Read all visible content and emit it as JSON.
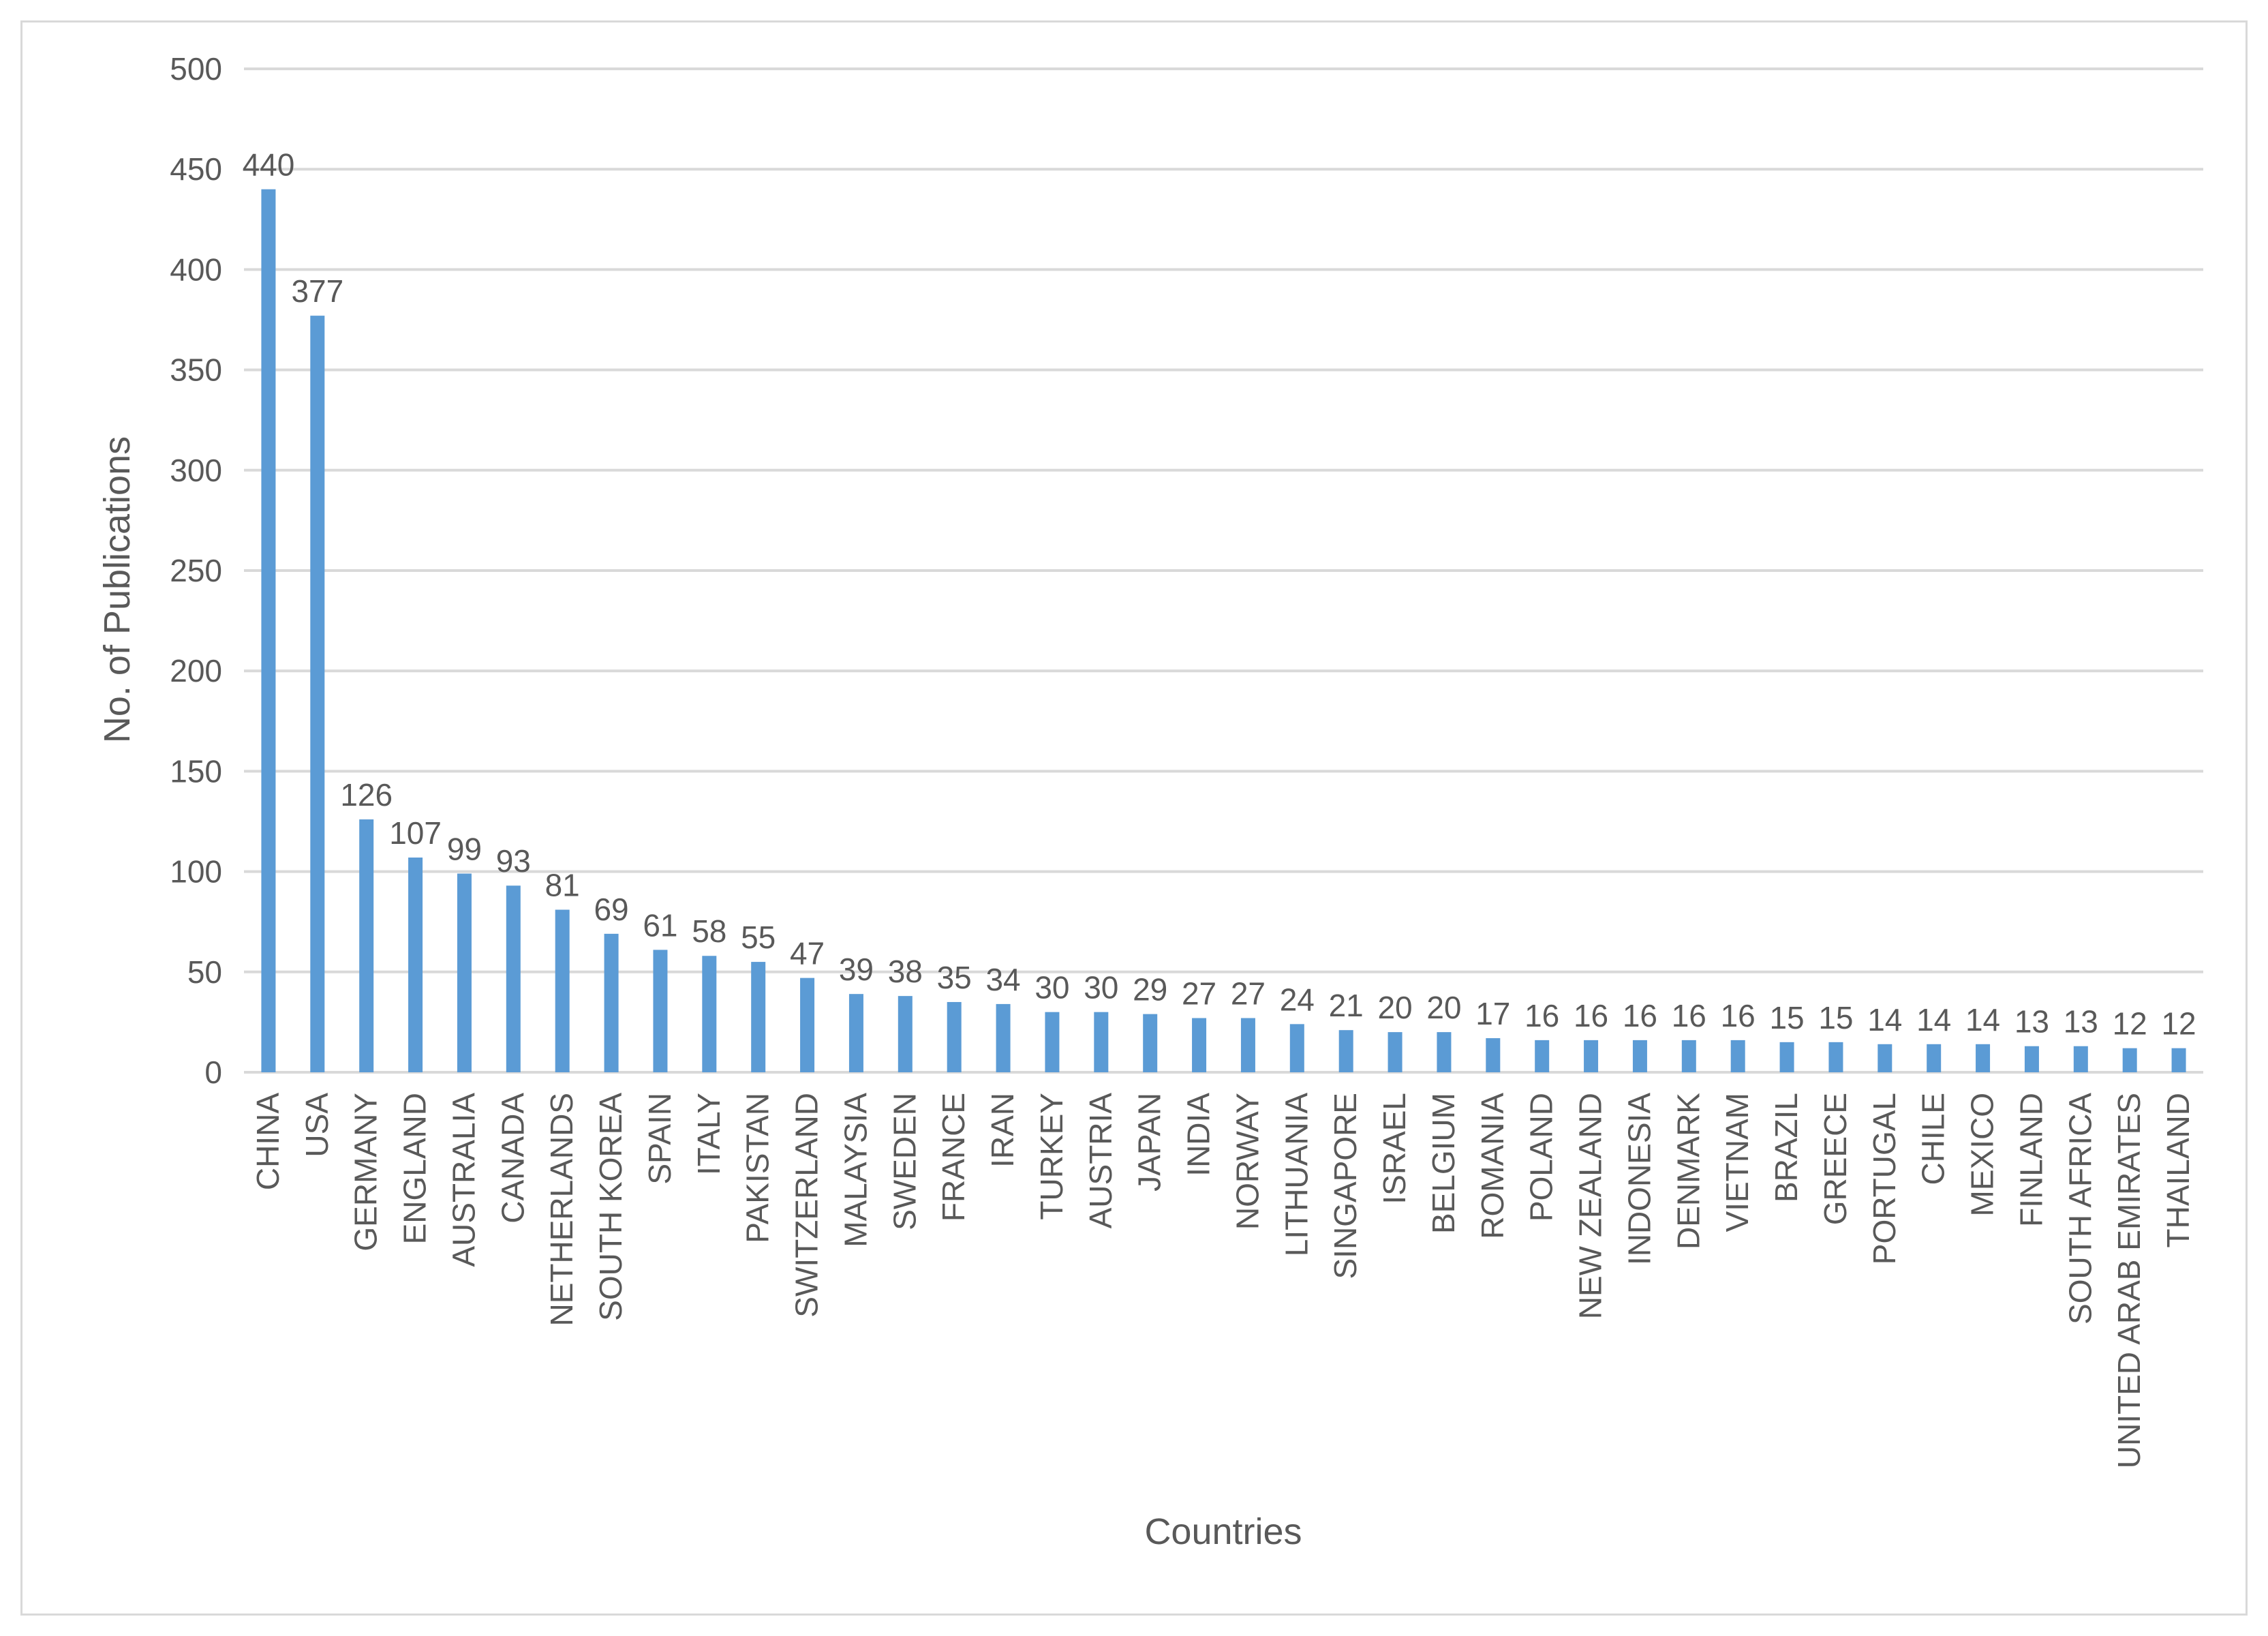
{
  "chart_data": {
    "type": "bar",
    "title": "",
    "xlabel": "Countries",
    "ylabel": "No. of Publications",
    "ylim": [
      0,
      500
    ],
    "yticks": [
      0,
      50,
      100,
      150,
      200,
      250,
      300,
      350,
      400,
      450,
      500
    ],
    "grid": true,
    "legend": "none",
    "bar_color": "#5b9bd5",
    "categories": [
      "CHINA",
      "USA",
      "GERMANY",
      "ENGLAND",
      "AUSTRALIA",
      "CANADA",
      "NETHERLANDS",
      "SOUTH KOREA",
      "SPAIN",
      "ITALY",
      "PAKISTAN",
      "SWITZERLAND",
      "MALAYSIA",
      "SWEDEN",
      "FRANCE",
      "IRAN",
      "TURKEY",
      "AUSTRIA",
      "JAPAN",
      "INDIA",
      "NORWAY",
      "LITHUANIA",
      "SINGAPORE",
      "ISRAEL",
      "BELGIUM",
      "ROMANIA",
      "POLAND",
      "NEW ZEALAND",
      "INDONESIA",
      "DENMARK",
      "VIETNAM",
      "BRAZIL",
      "GREECE",
      "PORTUGAL",
      "CHILE",
      "MEXICO",
      "FINLAND",
      "SOUTH AFRICA",
      "UNITED ARAB EMIRATES",
      "THAILAND"
    ],
    "values": [
      440,
      377,
      126,
      107,
      99,
      93,
      81,
      69,
      61,
      58,
      55,
      47,
      39,
      38,
      35,
      34,
      30,
      30,
      29,
      27,
      27,
      24,
      21,
      20,
      20,
      17,
      16,
      16,
      16,
      16,
      16,
      15,
      15,
      14,
      14,
      14,
      13,
      13,
      12,
      12
    ]
  }
}
